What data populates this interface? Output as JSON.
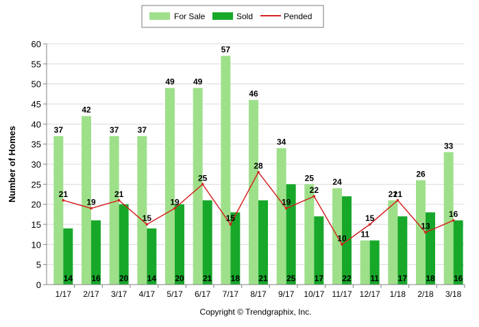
{
  "chart_data": {
    "type": "bar",
    "categories": [
      "1/17",
      "2/17",
      "3/17",
      "4/17",
      "5/17",
      "6/17",
      "7/17",
      "8/17",
      "9/17",
      "10/17",
      "11/17",
      "12/17",
      "1/18",
      "2/18",
      "3/18"
    ],
    "series": [
      {
        "name": "For Sale",
        "type": "bar",
        "color": "#9ee08a",
        "values": [
          37,
          42,
          37,
          37,
          49,
          49,
          57,
          46,
          34,
          25,
          24,
          11,
          21,
          26,
          33
        ]
      },
      {
        "name": "Sold",
        "type": "bar",
        "color": "#17a82a",
        "values": [
          14,
          16,
          20,
          14,
          20,
          21,
          18,
          21,
          25,
          17,
          22,
          11,
          17,
          18,
          16
        ]
      },
      {
        "name": "Pended",
        "type": "line",
        "color": "#d42020",
        "values": [
          21,
          19,
          21,
          15,
          19,
          25,
          15,
          28,
          19,
          22,
          10,
          15,
          21,
          13,
          16
        ]
      }
    ],
    "ylabel": "Number of Homes",
    "xlabel": "",
    "ylim": [
      0,
      60
    ],
    "yticks": [
      0,
      5,
      10,
      15,
      20,
      25,
      30,
      35,
      40,
      45,
      50,
      55,
      60
    ],
    "grid": true,
    "legend": "top-center",
    "footer": "Copyright © Trendgraphix, Inc."
  }
}
